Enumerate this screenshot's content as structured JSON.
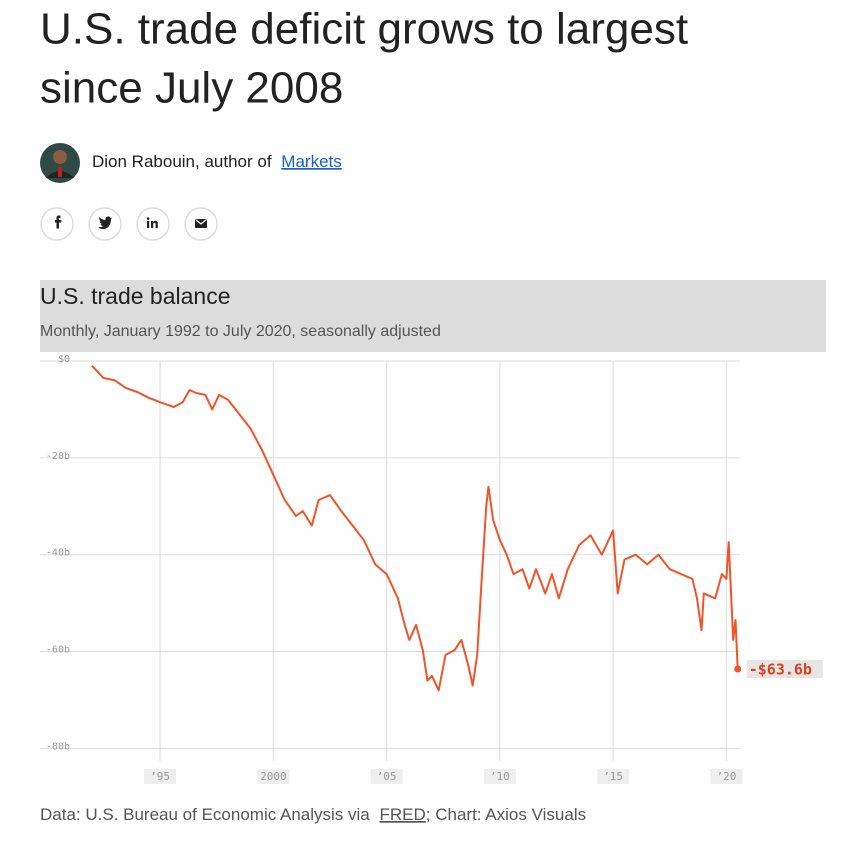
{
  "header": {
    "title_lines": [
      "U.S. trade deficit grows to largest",
      "since July 2008"
    ]
  },
  "byline": {
    "text": "Dion Rabouin, author of",
    "link": "Markets"
  },
  "chart_data": {
    "type": "line",
    "title": "U.S. trade balance",
    "subtitle": "Monthly, January 1992 to July 2020, seasonally adjusted",
    "x": [
      1992.0,
      1992.5,
      1993.0,
      1993.5,
      1994.0,
      1994.5,
      1995.0,
      1995.3,
      1995.6,
      1996.0,
      1996.3,
      1996.6,
      1997.0,
      1997.3,
      1997.6,
      1998.0,
      1998.5,
      1999.0,
      1999.5,
      2000.0,
      2000.5,
      2001.0,
      2001.3,
      2001.7,
      2002.0,
      2002.5,
      2003.0,
      2003.5,
      2004.0,
      2004.5,
      2005.0,
      2005.5,
      2005.8,
      2006.0,
      2006.3,
      2006.6,
      2006.8,
      2007.0,
      2007.3,
      2007.6,
      2008.0,
      2008.3,
      2008.6,
      2008.8,
      2009.0,
      2009.2,
      2009.4,
      2009.5,
      2009.7,
      2010.0,
      2010.3,
      2010.6,
      2011.0,
      2011.3,
      2011.6,
      2012.0,
      2012.3,
      2012.6,
      2013.0,
      2013.5,
      2014.0,
      2014.5,
      2015.0,
      2015.2,
      2015.5,
      2016.0,
      2016.5,
      2017.0,
      2017.5,
      2018.0,
      2018.5,
      2018.7,
      2018.9,
      2019.0,
      2019.5,
      2019.8,
      2020.0,
      2020.1,
      2020.3,
      2020.4,
      2020.5
    ],
    "series": [
      {
        "color": "#f0542a",
        "values": [
          -1,
          -3.5,
          -4,
          -5.6,
          -6.4,
          -7.6,
          -8.5,
          -9,
          -9.5,
          -8.5,
          -6,
          -6.6,
          -7,
          -10,
          -7,
          -8,
          -11,
          -14,
          -18.4,
          -23.5,
          -28.7,
          -32,
          -31,
          -34,
          -28.7,
          -27.7,
          -31,
          -34,
          -37,
          -42,
          -44,
          -49,
          -54.5,
          -57.6,
          -54.5,
          -59.7,
          -66,
          -65,
          -68,
          -60.7,
          -59.7,
          -57.6,
          -62.8,
          -67,
          -60.7,
          -45,
          -29.8,
          -26,
          -32.8,
          -37,
          -40,
          -44,
          -43,
          -47,
          -43,
          -48,
          -44,
          -49,
          -43,
          -38,
          -36,
          -40,
          -35,
          -48,
          -41,
          -40,
          -42,
          -40,
          -43,
          -44,
          -45,
          -49,
          -55.6,
          -48,
          -49,
          -44,
          -45,
          -37.4,
          -57.6,
          -53.5,
          -63.6
        ]
      }
    ],
    "annotations": [
      {
        "x": 2020.5,
        "value": -63.6,
        "label": "-$63.6b"
      }
    ],
    "xlim": [
      1989.7,
      2020.6
    ],
    "xticks": [
      {
        "value": 1995,
        "label": "’95"
      },
      2000,
      {
        "value": 2005,
        "label": "’05"
      },
      {
        "value": 2010,
        "label": "’10"
      },
      {
        "value": 2015,
        "label": "’15"
      },
      {
        "value": 2020,
        "label": "’20"
      }
    ],
    "ylim": [
      -82.6,
      0
    ],
    "yticks": [
      {
        "value": 0,
        "label": "$0"
      },
      {
        "value": -20,
        "label": "-20b"
      },
      {
        "value": -40,
        "label": "-40b"
      },
      {
        "value": -60,
        "label": "-60b"
      },
      {
        "value": -80,
        "label": "-80b"
      }
    ],
    "grid": true
  },
  "source": {
    "before": "Data: U.S. Bureau of Economic Analysis via",
    "link": "FRED",
    "after": "; Chart: Axios Visuals"
  }
}
